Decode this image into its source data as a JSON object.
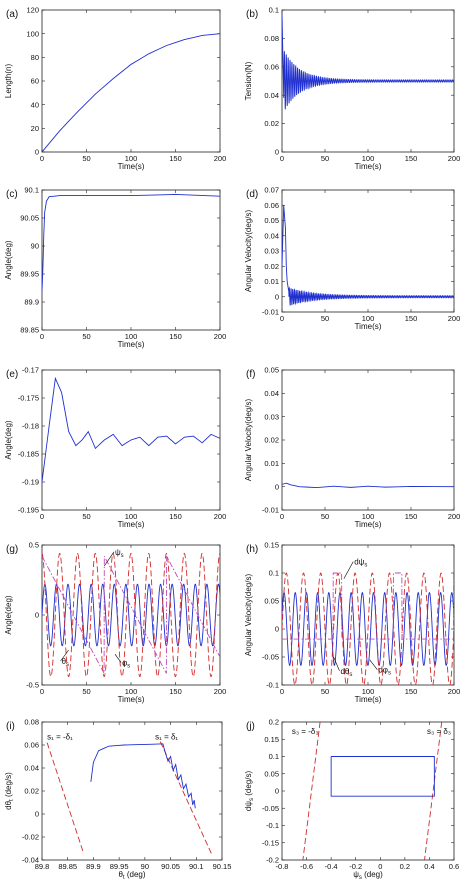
{
  "colors": {
    "blue": "#1f2fd0",
    "red": "#d42a2a",
    "magenta": "#c24ab8",
    "axis": "#222222"
  },
  "chart_data": [
    {
      "panel": "(a)",
      "type": "line",
      "xlabel": "Time(s)",
      "ylabel": "Length(n)",
      "xlim": [
        0,
        200
      ],
      "ylim": [
        0,
        120
      ],
      "xticks": [
        0,
        50,
        100,
        150,
        200
      ],
      "yticks": [
        0,
        20,
        40,
        60,
        80,
        100,
        120
      ],
      "series": [
        {
          "color": "blue",
          "shape": "curve",
          "points": [
            [
              0,
              0
            ],
            [
              20,
              18
            ],
            [
              40,
              34
            ],
            [
              60,
              49
            ],
            [
              80,
              62
            ],
            [
              100,
              74
            ],
            [
              120,
              83
            ],
            [
              140,
              90
            ],
            [
              160,
              95
            ],
            [
              180,
              98.5
            ],
            [
              200,
              100
            ]
          ]
        }
      ]
    },
    {
      "panel": "(b)",
      "type": "line",
      "xlabel": "Time(s)",
      "ylabel": "Tension(N)",
      "xlim": [
        0,
        200
      ],
      "ylim": [
        0,
        0.1
      ],
      "xticks": [
        0,
        50,
        100,
        150,
        200
      ],
      "yticks": [
        0,
        0.02,
        0.04,
        0.06,
        0.08,
        0.1
      ],
      "series": [
        {
          "color": "blue",
          "shape": "osc",
          "base": 0.05,
          "amp0": 0.022,
          "ampEnd": 0.0008,
          "decay": 18,
          "period": 2.2,
          "x0": 2,
          "x1": 200,
          "startPoint": [
            0,
            0.098
          ]
        }
      ]
    },
    {
      "panel": "(c)",
      "type": "line",
      "xlabel": "Time(s)",
      "ylabel": "Angle(deg)",
      "xlim": [
        0,
        200
      ],
      "ylim": [
        89.85,
        90.1
      ],
      "xticks": [
        0,
        50,
        100,
        150,
        200
      ],
      "yticks": [
        89.85,
        89.9,
        89.95,
        90,
        90.05,
        90.1
      ],
      "series": [
        {
          "color": "blue",
          "shape": "curve",
          "points": [
            [
              0,
              89.92
            ],
            [
              1,
              89.96
            ],
            [
              2,
              90.02
            ],
            [
              3,
              90.06
            ],
            [
              5,
              90.08
            ],
            [
              8,
              90.088
            ],
            [
              20,
              90.09
            ],
            [
              50,
              90.09
            ],
            [
              100,
              90.09
            ],
            [
              150,
              90.092
            ],
            [
              200,
              90.089
            ]
          ]
        }
      ]
    },
    {
      "panel": "(d)",
      "type": "line",
      "xlabel": "Time(s)",
      "ylabel": "Angular Velocity(deg/s)",
      "xlim": [
        0,
        200
      ],
      "ylim": [
        -0.01,
        0.07
      ],
      "xticks": [
        0,
        50,
        100,
        150,
        200
      ],
      "yticks": [
        -0.01,
        0,
        0.01,
        0.02,
        0.03,
        0.04,
        0.05,
        0.06,
        0.07
      ],
      "series": [
        {
          "color": "blue",
          "shape": "osc",
          "base": 0.0,
          "amp0": 0.006,
          "ampEnd": 0.0007,
          "decay": 25,
          "period": 2.0,
          "x0": 8,
          "x1": 200,
          "prefix": [
            [
              0,
              0.02
            ],
            [
              2,
              0.06
            ],
            [
              4,
              0.045
            ],
            [
              5,
              0.02
            ],
            [
              6,
              0.01
            ],
            [
              8,
              0.003
            ]
          ]
        }
      ]
    },
    {
      "panel": "(e)",
      "type": "line",
      "xlabel": "Time(s)",
      "ylabel": "Angle(deg)",
      "xlim": [
        0,
        200
      ],
      "ylim": [
        -0.195,
        -0.17
      ],
      "xticks": [
        0,
        50,
        100,
        150,
        200
      ],
      "yticks": [
        -0.195,
        -0.19,
        -0.185,
        -0.18,
        -0.175,
        -0.17
      ],
      "series": [
        {
          "color": "blue",
          "shape": "curve",
          "points": [
            [
              0,
              -0.19
            ],
            [
              8,
              -0.18
            ],
            [
              15,
              -0.1715
            ],
            [
              22,
              -0.174
            ],
            [
              30,
              -0.181
            ],
            [
              38,
              -0.1835
            ],
            [
              45,
              -0.1825
            ],
            [
              52,
              -0.181
            ],
            [
              60,
              -0.184
            ],
            [
              70,
              -0.1825
            ],
            [
              80,
              -0.1815
            ],
            [
              90,
              -0.1835
            ],
            [
              100,
              -0.1825
            ],
            [
              110,
              -0.182
            ],
            [
              120,
              -0.1835
            ],
            [
              130,
              -0.182
            ],
            [
              140,
              -0.1818
            ],
            [
              150,
              -0.1832
            ],
            [
              160,
              -0.182
            ],
            [
              170,
              -0.1818
            ],
            [
              180,
              -0.183
            ],
            [
              190,
              -0.1815
            ],
            [
              200,
              -0.1822
            ]
          ]
        }
      ]
    },
    {
      "panel": "(f)",
      "type": "line",
      "xlabel": "Time(s)",
      "ylabel": "Angular Velocity(deg/s)",
      "xlim": [
        0,
        200
      ],
      "ylim": [
        -0.01,
        0.05
      ],
      "xticks": [
        0,
        50,
        100,
        150,
        200
      ],
      "yticks": [
        -0.01,
        0,
        0.01,
        0.02,
        0.03,
        0.04,
        0.05
      ],
      "series": [
        {
          "color": "blue",
          "shape": "curve",
          "points": [
            [
              0,
              0.001
            ],
            [
              5,
              0.0015
            ],
            [
              10,
              0.0008
            ],
            [
              20,
              0.0
            ],
            [
              40,
              -0.0004
            ],
            [
              60,
              0.0002
            ],
            [
              80,
              -0.0003
            ],
            [
              100,
              0.0002
            ],
            [
              120,
              -0.0002
            ],
            [
              150,
              0.0001
            ],
            [
              200,
              0.0
            ]
          ]
        }
      ]
    },
    {
      "panel": "(g)",
      "type": "line",
      "xlabel": "Time(s)",
      "ylabel": "Angle(deg)",
      "xlim": [
        0,
        200
      ],
      "ylim": [
        -0.5,
        0.5
      ],
      "xticks": [
        0,
        50,
        100,
        150,
        200
      ],
      "yticks": [
        -0.5,
        0,
        0.5
      ],
      "annotations": [
        {
          "text": "ψ",
          "sub": "s",
          "at": [
            82,
            0.43
          ],
          "arrowTo": [
            70,
            0.35
          ]
        },
        {
          "text": "θ",
          "sub": "s",
          "at": [
            22,
            -0.35
          ],
          "arrowTo": [
            30,
            -0.25
          ]
        },
        {
          "text": "φ",
          "sub": "s",
          "at": [
            90,
            -0.36
          ],
          "arrowTo": [
            82,
            -0.28
          ]
        }
      ],
      "series": [
        {
          "color": "blue",
          "shape": "sine",
          "style": "solid",
          "amp": 0.22,
          "period": 13,
          "phase": 0
        },
        {
          "color": "red",
          "shape": "sine",
          "style": "dash",
          "amp": 0.44,
          "period": 20,
          "phase": 1.6
        },
        {
          "color": "magenta",
          "shape": "saw",
          "style": "dashdot",
          "amp": 0.42,
          "period": 70
        }
      ]
    },
    {
      "panel": "(h)",
      "type": "line",
      "xlabel": "Time(s)",
      "ylabel": "Angular Velocity(deg/s)",
      "xlim": [
        0,
        200
      ],
      "ylim": [
        -0.1,
        0.15
      ],
      "xticks": [
        0,
        50,
        100,
        150,
        200
      ],
      "yticks": [
        -0.1,
        -0.05,
        0,
        0.05,
        0.1,
        0.15
      ],
      "annotations": [
        {
          "text": "dψ",
          "sub": "s",
          "at": [
            84,
            0.115
          ],
          "arrowTo": [
            72,
            0.09
          ]
        },
        {
          "text": "dθ",
          "sub": "s",
          "at": [
            68,
            -0.08
          ],
          "arrowTo": [
            60,
            -0.05
          ]
        },
        {
          "text": "dφ",
          "sub": "s",
          "at": [
            112,
            -0.078
          ],
          "arrowTo": [
            102,
            -0.055
          ]
        }
      ],
      "series": [
        {
          "color": "blue",
          "shape": "sine",
          "style": "solid",
          "amp": 0.065,
          "period": 13,
          "phase": 0.4
        },
        {
          "color": "red",
          "shape": "sine",
          "style": "dash",
          "amp": 0.1,
          "period": 20,
          "phase": 0
        },
        {
          "color": "magenta",
          "shape": "pulse",
          "style": "dashdot",
          "base": -0.018,
          "high": 0.1,
          "period": 70,
          "width": 10
        }
      ]
    },
    {
      "panel": "(i)",
      "type": "line",
      "xlabel": "θ_t (deg)",
      "ylabel": "dθ_t (deg/s)",
      "xlim": [
        89.8,
        90.15
      ],
      "ylim": [
        -0.04,
        0.08
      ],
      "xticks": [
        89.8,
        89.85,
        89.9,
        89.95,
        90,
        90.05,
        90.1,
        90.15
      ],
      "yticks": [
        -0.04,
        -0.02,
        0,
        0.02,
        0.04,
        0.06,
        0.08
      ],
      "annotations": [
        {
          "text": "s₁ = -δ₁",
          "at": [
            89.81,
            0.065
          ]
        },
        {
          "text": "s₁ = δ₁",
          "at": [
            90.02,
            0.065
          ]
        }
      ],
      "series": [
        {
          "color": "red",
          "shape": "curve",
          "style": "dash",
          "points": [
            [
              89.81,
              0.062
            ],
            [
              89.88,
              -0.033
            ]
          ]
        },
        {
          "color": "red",
          "shape": "curve",
          "style": "dash",
          "points": [
            [
              90.03,
              0.063
            ],
            [
              90.13,
              -0.035
            ]
          ]
        },
        {
          "color": "blue",
          "shape": "curve",
          "style": "solid",
          "points": [
            [
              89.895,
              0.028
            ],
            [
              89.9,
              0.045
            ],
            [
              89.91,
              0.055
            ],
            [
              89.93,
              0.059
            ],
            [
              89.96,
              0.06
            ],
            [
              90.0,
              0.0605
            ],
            [
              90.035,
              0.061
            ],
            [
              90.04,
              0.053
            ],
            [
              90.045,
              0.046
            ],
            [
              90.05,
              0.05
            ],
            [
              90.055,
              0.038
            ],
            [
              90.06,
              0.043
            ],
            [
              90.065,
              0.03
            ],
            [
              90.07,
              0.034
            ],
            [
              90.075,
              0.022
            ],
            [
              90.08,
              0.026
            ],
            [
              90.085,
              0.015
            ],
            [
              90.09,
              0.018
            ],
            [
              90.093,
              0.008
            ],
            [
              90.096,
              0.012
            ],
            [
              90.098,
              0.005
            ]
          ]
        }
      ]
    },
    {
      "panel": "(j)",
      "type": "line",
      "xlabel": "ψ_s (deg)",
      "ylabel": "dψ_s (deg/s)",
      "xlim": [
        -0.8,
        0.6
      ],
      "ylim": [
        -0.2,
        0.2
      ],
      "xticks": [
        -0.8,
        -0.6,
        -0.4,
        -0.2,
        0,
        0.2,
        0.4,
        0.6
      ],
      "yticks": [
        -0.2,
        -0.15,
        -0.1,
        -0.05,
        0,
        0.05,
        0.1,
        0.15,
        0.2
      ],
      "annotations": [
        {
          "text": "s₃ = -δ₃",
          "at": [
            -0.72,
            0.165
          ]
        },
        {
          "text": "s₃ = δ₃",
          "at": [
            0.38,
            0.165
          ]
        }
      ],
      "series": [
        {
          "color": "red",
          "shape": "curve",
          "style": "dash",
          "points": [
            [
              -0.49,
              0.2
            ],
            [
              -0.63,
              -0.2
            ]
          ]
        },
        {
          "color": "red",
          "shape": "curve",
          "style": "dash",
          "points": [
            [
              0.5,
              0.2
            ],
            [
              0.36,
              -0.2
            ]
          ]
        },
        {
          "color": "blue",
          "shape": "curve",
          "style": "solid",
          "points": [
            [
              -0.4,
              0.1
            ],
            [
              0.44,
              0.1
            ],
            [
              0.44,
              -0.015
            ],
            [
              -0.4,
              -0.015
            ],
            [
              -0.4,
              0.1
            ]
          ]
        }
      ]
    }
  ]
}
